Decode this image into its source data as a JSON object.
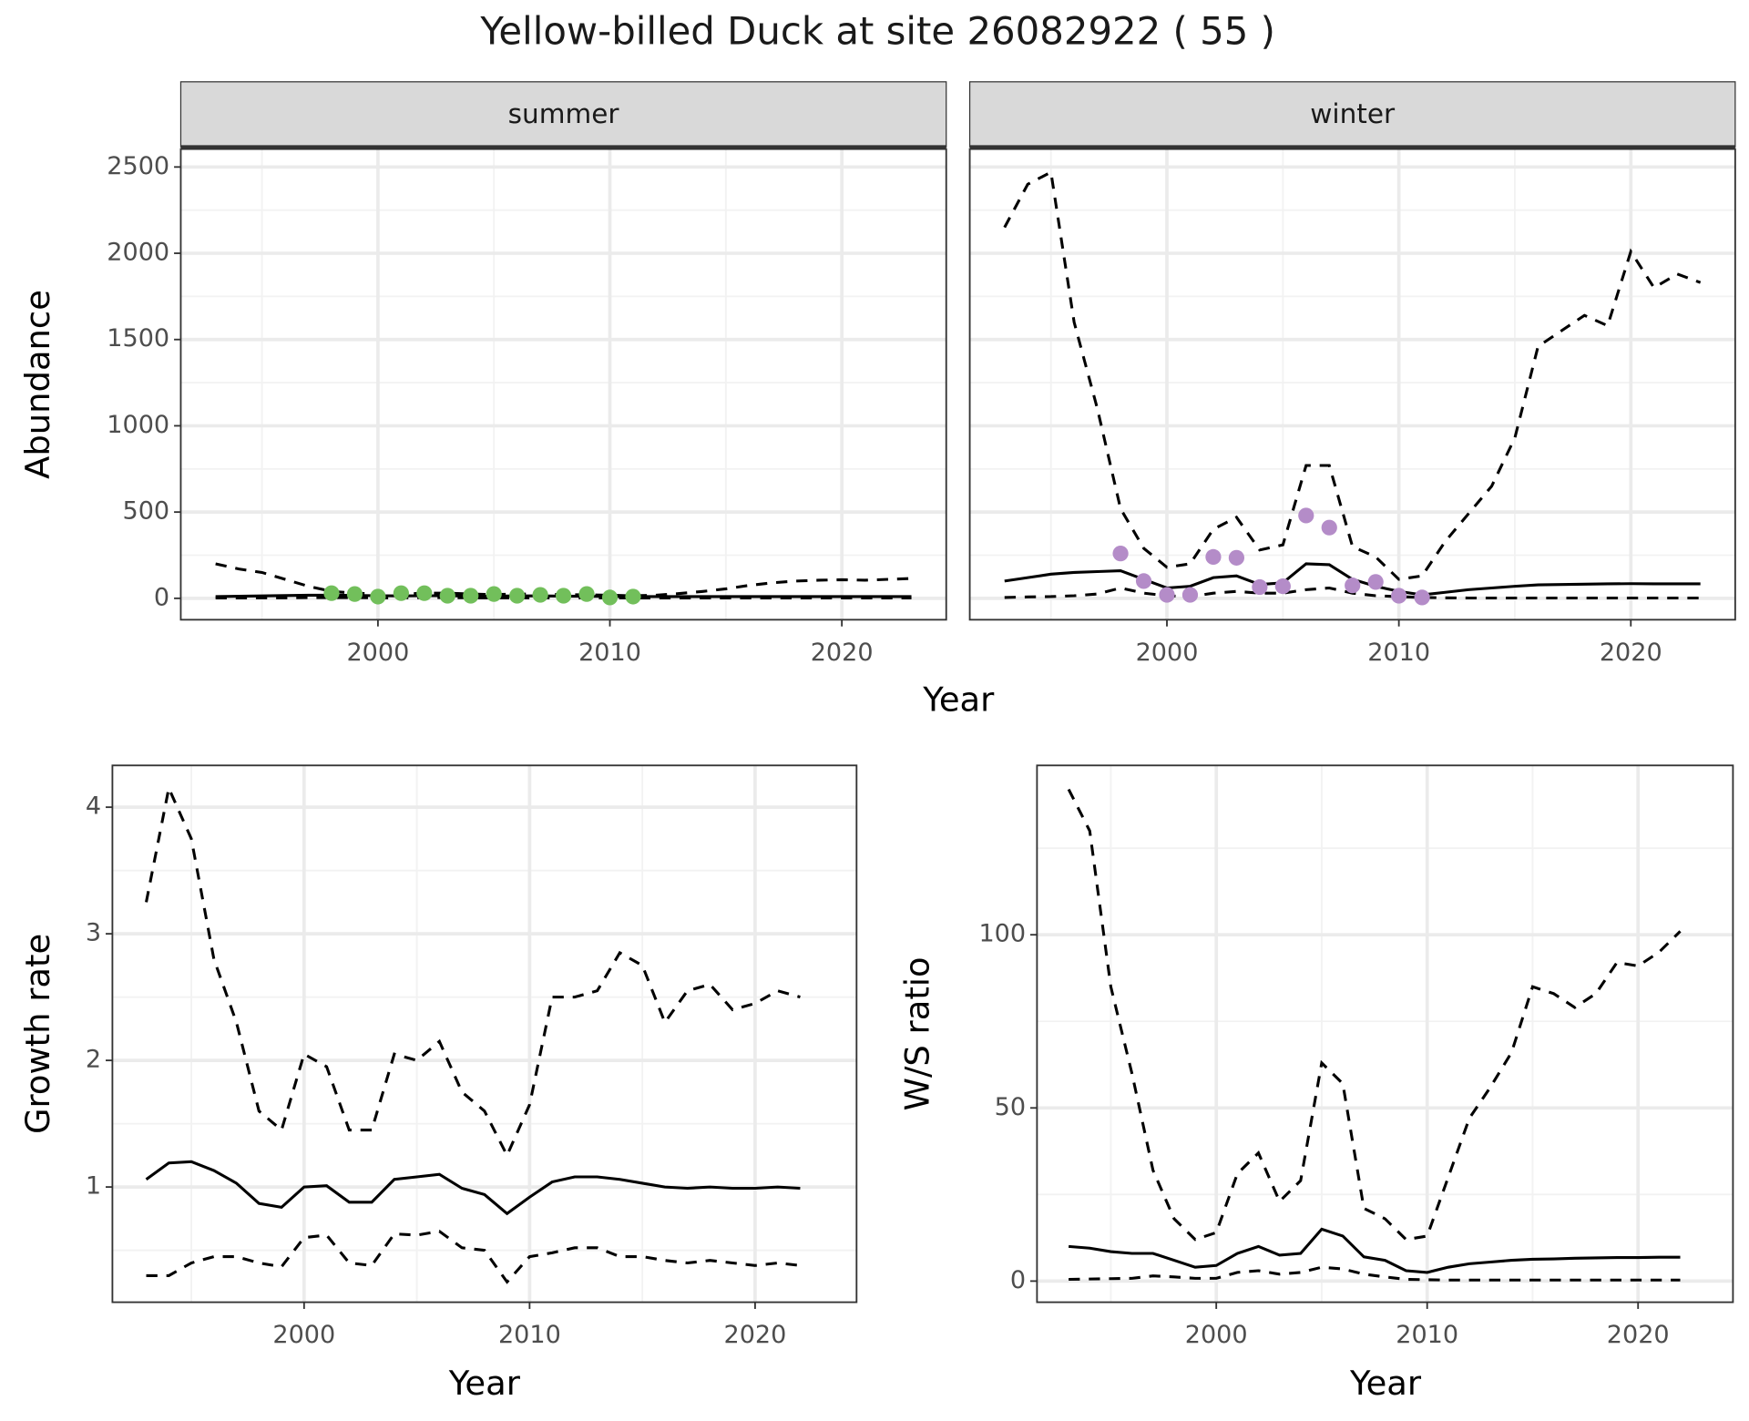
{
  "title": "Yellow-billed Duck at site 26082922 ( 55 )",
  "chart_data": [
    {
      "type": "line",
      "strip": "summer",
      "ylabel": "Abundance",
      "xlabel": "Year",
      "x": [
        1993,
        1994,
        1995,
        1996,
        1997,
        1998,
        1999,
        2000,
        2001,
        2002,
        2003,
        2004,
        2005,
        2006,
        2007,
        2008,
        2009,
        2010,
        2011,
        2012,
        2013,
        2014,
        2015,
        2016,
        2017,
        2018,
        2019,
        2020,
        2021,
        2022,
        2023
      ],
      "xlim": [
        1991.5,
        2024.5
      ],
      "xticks": [
        2000,
        2010,
        2020
      ],
      "ylim": [
        -124,
        2604
      ],
      "yticks": [
        0,
        500,
        1000,
        1500,
        2000,
        2500
      ],
      "grid": true,
      "series": [
        {
          "style": "solid",
          "color": "#000000",
          "values": [
            10,
            12,
            14,
            16,
            18,
            18,
            17,
            15,
            14,
            15,
            15,
            13,
            13,
            14,
            14,
            13,
            12,
            11,
            10,
            10,
            10,
            10,
            10,
            10,
            10,
            10,
            10,
            10,
            10,
            10,
            10
          ]
        },
        {
          "style": "dashed",
          "color": "#000000",
          "values": [
            200,
            170,
            150,
            110,
            70,
            40,
            30,
            25,
            25,
            30,
            30,
            25,
            22,
            25,
            25,
            22,
            20,
            18,
            15,
            18,
            28,
            40,
            55,
            75,
            90,
            100,
            105,
            108,
            105,
            110,
            115
          ]
        },
        {
          "style": "dashed",
          "color": "#000000",
          "values": [
            2,
            2,
            3,
            3,
            4,
            4,
            4,
            3,
            3,
            4,
            4,
            3,
            3,
            3,
            3,
            3,
            3,
            3,
            2,
            2,
            2,
            2,
            2,
            2,
            2,
            2,
            2,
            2,
            2,
            2,
            2
          ]
        },
        {
          "style": "points",
          "color": "#72bf5b",
          "values": [
            null,
            null,
            null,
            null,
            null,
            30,
            25,
            10,
            30,
            30,
            15,
            15,
            25,
            15,
            20,
            15,
            25,
            5,
            10,
            null,
            null,
            null,
            null,
            null,
            null,
            null,
            null,
            null,
            null,
            null,
            null
          ]
        }
      ]
    },
    {
      "type": "line",
      "strip": "winter",
      "show_ytick_labels": false,
      "x": [
        1993,
        1994,
        1995,
        1996,
        1997,
        1998,
        1999,
        2000,
        2001,
        2002,
        2003,
        2004,
        2005,
        2006,
        2007,
        2008,
        2009,
        2010,
        2011,
        2012,
        2013,
        2014,
        2015,
        2016,
        2017,
        2018,
        2019,
        2020,
        2021,
        2022,
        2023
      ],
      "xlim": [
        1991.5,
        2024.5
      ],
      "xticks": [
        2000,
        2010,
        2020
      ],
      "ylim": [
        -124,
        2604
      ],
      "yticks": [
        0,
        500,
        1000,
        1500,
        2000,
        2500
      ],
      "grid": true,
      "series": [
        {
          "style": "solid",
          "color": "#000000",
          "values": [
            100,
            120,
            140,
            150,
            155,
            160,
            110,
            60,
            70,
            120,
            130,
            80,
            90,
            200,
            195,
            110,
            70,
            40,
            20,
            35,
            50,
            60,
            70,
            78,
            80,
            82,
            84,
            85,
            84,
            84,
            84
          ]
        },
        {
          "style": "dashed",
          "color": "#000000",
          "values": [
            2150,
            2400,
            2470,
            1600,
            1100,
            520,
            290,
            180,
            200,
            400,
            470,
            280,
            310,
            770,
            770,
            300,
            240,
            110,
            130,
            330,
            490,
            650,
            930,
            1460,
            1550,
            1640,
            1580,
            2010,
            1800,
            1880,
            1830
          ]
        },
        {
          "style": "dashed",
          "color": "#000000",
          "values": [
            5,
            8,
            10,
            15,
            25,
            60,
            30,
            15,
            10,
            30,
            40,
            30,
            30,
            50,
            60,
            30,
            15,
            10,
            5,
            3,
            2,
            2,
            2,
            2,
            2,
            2,
            2,
            2,
            2,
            2,
            2
          ]
        },
        {
          "style": "points",
          "color": "#b48cc8",
          "values": [
            null,
            null,
            null,
            null,
            null,
            260,
            100,
            20,
            20,
            240,
            235,
            65,
            70,
            480,
            410,
            75,
            95,
            15,
            5,
            null,
            null,
            null,
            null,
            null,
            null,
            null,
            null,
            null,
            null,
            null,
            null
          ]
        }
      ]
    },
    {
      "type": "line",
      "ylabel": "Growth rate",
      "xlabel": "Year",
      "x": [
        1993,
        1994,
        1995,
        1996,
        1997,
        1998,
        1999,
        2000,
        2001,
        2002,
        2003,
        2004,
        2005,
        2006,
        2007,
        2008,
        2009,
        2010,
        2011,
        2012,
        2013,
        2014,
        2015,
        2016,
        2017,
        2018,
        2019,
        2020,
        2021,
        2022
      ],
      "xlim": [
        1991.5,
        2024.5
      ],
      "xticks": [
        2000,
        2010,
        2020
      ],
      "ylim": [
        0.09,
        4.33
      ],
      "yticks": [
        1,
        2,
        3,
        4
      ],
      "grid": true,
      "series": [
        {
          "style": "solid",
          "color": "#000000",
          "values": [
            1.06,
            1.19,
            1.2,
            1.13,
            1.03,
            0.87,
            0.84,
            1.0,
            1.01,
            0.88,
            0.88,
            1.06,
            1.08,
            1.1,
            0.99,
            0.94,
            0.79,
            0.92,
            1.04,
            1.08,
            1.08,
            1.06,
            1.03,
            1.0,
            0.99,
            1.0,
            0.99,
            0.99,
            1.0,
            0.99
          ]
        },
        {
          "style": "dashed",
          "color": "#000000",
          "values": [
            3.25,
            4.15,
            3.75,
            2.8,
            2.3,
            1.6,
            1.45,
            2.05,
            1.95,
            1.45,
            1.45,
            2.05,
            2.0,
            2.15,
            1.75,
            1.6,
            1.25,
            1.65,
            2.5,
            2.5,
            2.55,
            2.85,
            2.75,
            2.3,
            2.55,
            2.6,
            2.4,
            2.45,
            2.55,
            2.5
          ]
        },
        {
          "style": "dashed",
          "color": "#000000",
          "values": [
            0.3,
            0.3,
            0.4,
            0.45,
            0.45,
            0.4,
            0.37,
            0.6,
            0.62,
            0.4,
            0.38,
            0.63,
            0.62,
            0.65,
            0.52,
            0.5,
            0.25,
            0.45,
            0.48,
            0.52,
            0.52,
            0.45,
            0.45,
            0.42,
            0.4,
            0.42,
            0.4,
            0.38,
            0.4,
            0.38
          ]
        }
      ]
    },
    {
      "type": "line",
      "ylabel": "W/S ratio",
      "xlabel": "Year",
      "x": [
        1993,
        1994,
        1995,
        1996,
        1997,
        1998,
        1999,
        2000,
        2001,
        2002,
        2003,
        2004,
        2005,
        2006,
        2007,
        2008,
        2009,
        2010,
        2011,
        2012,
        2013,
        2014,
        2015,
        2016,
        2017,
        2018,
        2019,
        2020,
        2021,
        2022
      ],
      "xlim": [
        1991.5,
        2024.5
      ],
      "xticks": [
        2000,
        2010,
        2020
      ],
      "ylim": [
        -6.1,
        148.9
      ],
      "yticks": [
        0,
        50,
        100
      ],
      "grid": true,
      "series": [
        {
          "style": "solid",
          "color": "#000000",
          "values": [
            10,
            9.5,
            8.5,
            8,
            8,
            6,
            4,
            4.5,
            8,
            10,
            7.5,
            8,
            15,
            13,
            7,
            6,
            3,
            2.5,
            4,
            5,
            5.5,
            6,
            6.3,
            6.4,
            6.6,
            6.7,
            6.8,
            6.8,
            6.9,
            6.9
          ]
        },
        {
          "style": "dashed",
          "color": "#000000",
          "values": [
            142,
            130,
            85,
            60,
            32,
            18,
            12,
            14,
            31,
            37,
            23,
            29,
            63,
            57,
            21,
            18,
            12,
            13,
            30,
            47,
            56,
            66,
            85,
            83,
            79,
            83,
            92,
            91,
            95,
            101
          ]
        },
        {
          "style": "dashed",
          "color": "#000000",
          "values": [
            0.5,
            0.6,
            0.7,
            0.8,
            1.5,
            1.2,
            0.8,
            0.8,
            2.5,
            3,
            2,
            2.5,
            4,
            3.5,
            2,
            1.2,
            0.5,
            0.4,
            0.3,
            0.3,
            0.3,
            0.3,
            0.3,
            0.3,
            0.3,
            0.3,
            0.3,
            0.3,
            0.3,
            0.3
          ]
        }
      ]
    }
  ]
}
